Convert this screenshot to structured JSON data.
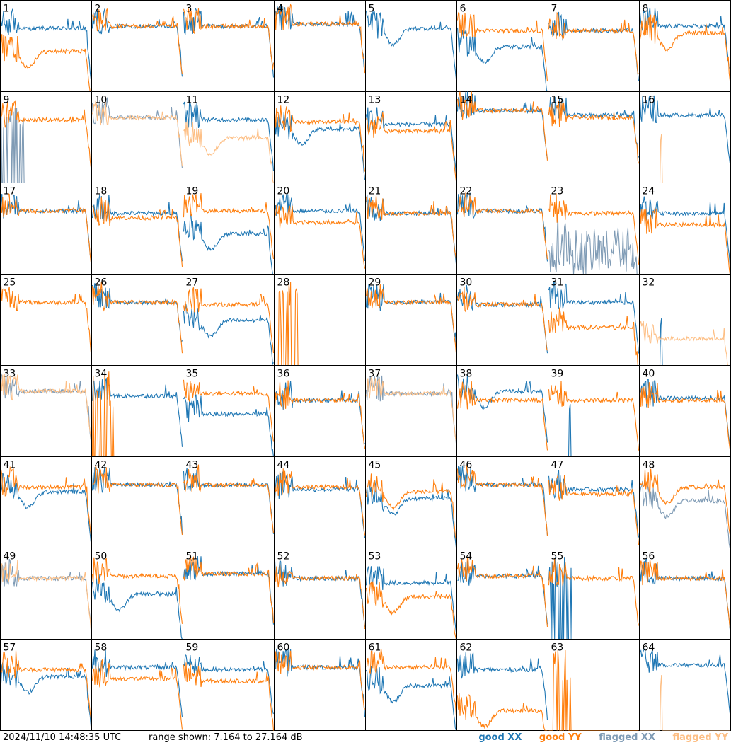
{
  "footer": {
    "timestamp": "2024/11/10 14:48:35 UTC",
    "range_label": "range shown: 7.164 to 27.164 dB"
  },
  "legend": {
    "good_xx": "good XX",
    "good_yy": "good YY",
    "flagged_xx": "flagged XX",
    "flagged_yy": "flagged YY"
  },
  "colors": {
    "good_xx": "#1f77b4",
    "good_yy": "#ff7f0e",
    "flagged_xx": "#7f9bb5",
    "flagged_yy": "#fdbf85"
  },
  "chart_data": {
    "type": "line",
    "grid_layout": "8x8 small multiples",
    "ylim": [
      7.164,
      27.164
    ],
    "y_unit": "dB",
    "panel_labels": [
      "1",
      "2",
      "3",
      "4",
      "5",
      "6",
      "7",
      "8",
      "9",
      "10",
      "11",
      "12",
      "13",
      "14",
      "15",
      "16",
      "17",
      "18",
      "19",
      "20",
      "21",
      "22",
      "23",
      "24",
      "25",
      "26",
      "27",
      "28",
      "29",
      "30",
      "31",
      "32",
      "33",
      "34",
      "35",
      "36",
      "37",
      "38",
      "39",
      "40",
      "41",
      "42",
      "43",
      "44",
      "45",
      "46",
      "47",
      "48",
      "49",
      "50",
      "51",
      "52",
      "53",
      "54",
      "55",
      "56",
      "57",
      "58",
      "59",
      "60",
      "61",
      "62",
      "63",
      "64"
    ],
    "panels": [
      {
        "xx": "good",
        "yy": "good",
        "xx_level": 21,
        "yy_level": 16,
        "xx_shape": "flat",
        "yy_shape": "dip"
      },
      {
        "xx": "good",
        "yy": "good",
        "xx_level": 21.5,
        "yy_level": 21.5,
        "xx_shape": "flat",
        "yy_shape": "flat"
      },
      {
        "xx": "good",
        "yy": "good",
        "xx_level": 21.5,
        "yy_level": 21.5,
        "xx_shape": "flat",
        "yy_shape": "flat"
      },
      {
        "xx": "good",
        "yy": "good",
        "xx_level": 22,
        "yy_level": 22,
        "xx_shape": "flat",
        "yy_shape": "flat"
      },
      {
        "xx": "good",
        "yy": "absent",
        "xx_level": 21,
        "yy_level": 7.2,
        "xx_shape": "dip",
        "yy_shape": "flat"
      },
      {
        "xx": "good",
        "yy": "good",
        "xx_level": 17,
        "yy_level": 20.5,
        "xx_shape": "dip",
        "yy_shape": "flat"
      },
      {
        "xx": "good",
        "yy": "good",
        "xx_level": 20.5,
        "yy_level": 20.5,
        "xx_shape": "flat",
        "yy_shape": "flat"
      },
      {
        "xx": "good",
        "yy": "good",
        "xx_level": 21.5,
        "yy_level": 20,
        "xx_shape": "flat",
        "yy_shape": "dip"
      },
      {
        "xx": "flagged",
        "yy": "good",
        "xx_level": 8.5,
        "yy_level": 21,
        "xx_shape": "spikes",
        "yy_shape": "flat"
      },
      {
        "xx": "flagged",
        "yy": "flagged",
        "xx_level": 21.5,
        "yy_level": 21.5,
        "xx_shape": "flat",
        "yy_shape": "flat"
      },
      {
        "xx": "good",
        "yy": "flagged",
        "xx_level": 21,
        "yy_level": 17,
        "xx_shape": "flat",
        "yy_shape": "dip"
      },
      {
        "xx": "good",
        "yy": "good",
        "xx_level": 19,
        "yy_level": 20.5,
        "xx_shape": "dip",
        "yy_shape": "flat"
      },
      {
        "xx": "good",
        "yy": "good",
        "xx_level": 20,
        "yy_level": 18.5,
        "xx_shape": "flat",
        "yy_shape": "flat"
      },
      {
        "xx": "good",
        "yy": "good",
        "xx_level": 23,
        "yy_level": 23,
        "xx_shape": "flat",
        "yy_shape": "flat"
      },
      {
        "xx": "good",
        "yy": "good",
        "xx_level": 22,
        "yy_level": 21.5,
        "xx_shape": "flat",
        "yy_shape": "flat"
      },
      {
        "xx": "good",
        "yy": "flagged",
        "xx_level": 22,
        "yy_level": 7.2,
        "xx_shape": "flat",
        "yy_shape": "spike"
      },
      {
        "xx": "good",
        "yy": "good",
        "xx_level": 21,
        "yy_level": 21,
        "xx_shape": "flat",
        "yy_shape": "flat"
      },
      {
        "xx": "good",
        "yy": "good",
        "xx_level": 20.5,
        "yy_level": 19.5,
        "xx_shape": "flat",
        "yy_shape": "flat"
      },
      {
        "xx": "good",
        "yy": "good",
        "xx_level": 16,
        "yy_level": 21,
        "xx_shape": "dip",
        "yy_shape": "flat"
      },
      {
        "xx": "good",
        "yy": "good",
        "xx_level": 21,
        "yy_level": 18.5,
        "xx_shape": "flat",
        "yy_shape": "flat"
      },
      {
        "xx": "good",
        "yy": "good",
        "xx_level": 20.5,
        "yy_level": 20.5,
        "xx_shape": "flat",
        "yy_shape": "flat"
      },
      {
        "xx": "good",
        "yy": "good",
        "xx_level": 21,
        "yy_level": 21,
        "xx_shape": "flat",
        "yy_shape": "flat"
      },
      {
        "xx": "flagged",
        "yy": "good",
        "xx_level": 12,
        "yy_level": 20.5,
        "xx_shape": "noisy",
        "yy_shape": "flat"
      },
      {
        "xx": "good",
        "yy": "good",
        "xx_level": 20.5,
        "yy_level": 18,
        "xx_shape": "flat",
        "yy_shape": "flat"
      },
      {
        "xx": "absent",
        "yy": "good",
        "xx_level": 7.2,
        "yy_level": 21,
        "xx_shape": "flat",
        "yy_shape": "flat"
      },
      {
        "xx": "good",
        "yy": "good",
        "xx_level": 21,
        "yy_level": 21,
        "xx_shape": "flat",
        "yy_shape": "flat"
      },
      {
        "xx": "good",
        "yy": "good",
        "xx_level": 17,
        "yy_level": 20.5,
        "xx_shape": "dip",
        "yy_shape": "flat"
      },
      {
        "xx": "absent",
        "yy": "good",
        "xx_level": 7.2,
        "yy_level": 7.2,
        "xx_shape": "flat",
        "yy_shape": "spikes"
      },
      {
        "xx": "good",
        "yy": "good",
        "xx_level": 21,
        "yy_level": 21,
        "xx_shape": "flat",
        "yy_shape": "flat"
      },
      {
        "xx": "good",
        "yy": "good",
        "xx_level": 20.5,
        "yy_level": 20.5,
        "xx_shape": "flat",
        "yy_shape": "flat"
      },
      {
        "xx": "good",
        "yy": "good",
        "xx_level": 21,
        "yy_level": 15.5,
        "xx_shape": "flat",
        "yy_shape": "flat"
      },
      {
        "xx": "good",
        "yy": "flagged",
        "xx_level": 7.2,
        "yy_level": 13,
        "xx_shape": "spike",
        "yy_shape": "flat"
      },
      {
        "xx": "flagged",
        "yy": "flagged",
        "xx_level": 21.5,
        "yy_level": 21.5,
        "xx_shape": "flat",
        "yy_shape": "flat"
      },
      {
        "xx": "good",
        "yy": "good",
        "xx_level": 20.5,
        "yy_level": 7.2,
        "xx_shape": "flat",
        "yy_shape": "spikes"
      },
      {
        "xx": "good",
        "yy": "good",
        "xx_level": 16.5,
        "yy_level": 21,
        "xx_shape": "flat",
        "yy_shape": "flat"
      },
      {
        "xx": "good",
        "yy": "good",
        "xx_level": 19.5,
        "yy_level": 19.5,
        "xx_shape": "flat",
        "yy_shape": "flat"
      },
      {
        "xx": "flagged",
        "yy": "flagged",
        "xx_level": 21,
        "yy_level": 21,
        "xx_shape": "flat",
        "yy_shape": "flat"
      },
      {
        "xx": "good",
        "yy": "good",
        "xx_level": 21.5,
        "yy_level": 19.5,
        "xx_shape": "dip",
        "yy_shape": "flat"
      },
      {
        "xx": "good",
        "yy": "good",
        "xx_level": 7.2,
        "yy_level": 19.5,
        "xx_shape": "spike",
        "yy_shape": "flat"
      },
      {
        "xx": "good",
        "yy": "good",
        "xx_level": 20,
        "yy_level": 19.5,
        "xx_shape": "flat",
        "yy_shape": "flat"
      },
      {
        "xx": "good",
        "yy": "good",
        "xx_level": 19.5,
        "yy_level": 20.5,
        "xx_shape": "dip",
        "yy_shape": "flat"
      },
      {
        "xx": "good",
        "yy": "good",
        "xx_level": 21,
        "yy_level": 21,
        "xx_shape": "flat",
        "yy_shape": "flat"
      },
      {
        "xx": "good",
        "yy": "good",
        "xx_level": 21,
        "yy_level": 21,
        "xx_shape": "flat",
        "yy_shape": "flat"
      },
      {
        "xx": "good",
        "yy": "good",
        "xx_level": 20,
        "yy_level": 20.5,
        "xx_shape": "flat",
        "yy_shape": "flat"
      },
      {
        "xx": "good",
        "yy": "good",
        "xx_level": 18,
        "yy_level": 19.5,
        "xx_shape": "dip",
        "yy_shape": "dip"
      },
      {
        "xx": "good",
        "yy": "good",
        "xx_level": 21,
        "yy_level": 21,
        "xx_shape": "flat",
        "yy_shape": "flat"
      },
      {
        "xx": "good",
        "yy": "good",
        "xx_level": 20,
        "yy_level": 19,
        "xx_shape": "flat",
        "yy_shape": "flat"
      },
      {
        "xx": "flagged",
        "yy": "good",
        "xx_level": 17.5,
        "yy_level": 20.5,
        "xx_shape": "dip",
        "yy_shape": "dip"
      },
      {
        "xx": "flagged",
        "yy": "flagged",
        "xx_level": 20.5,
        "yy_level": 20.5,
        "xx_shape": "flat",
        "yy_shape": "flat"
      },
      {
        "xx": "good",
        "yy": "good",
        "xx_level": 17,
        "yy_level": 21,
        "xx_shape": "dip",
        "yy_shape": "flat"
      },
      {
        "xx": "good",
        "yy": "good",
        "xx_level": 21.5,
        "yy_level": 21.5,
        "xx_shape": "flat",
        "yy_shape": "flat"
      },
      {
        "xx": "good",
        "yy": "good",
        "xx_level": 20.5,
        "yy_level": 20.5,
        "xx_shape": "flat",
        "yy_shape": "flat"
      },
      {
        "xx": "good",
        "yy": "good",
        "xx_level": 19.5,
        "yy_level": 16.5,
        "xx_shape": "flat",
        "yy_shape": "dip"
      },
      {
        "xx": "good",
        "yy": "good",
        "xx_level": 21,
        "yy_level": 21,
        "xx_shape": "flat",
        "yy_shape": "flat"
      },
      {
        "xx": "good",
        "yy": "good",
        "xx_level": 7.2,
        "yy_level": 20.5,
        "xx_shape": "spikes",
        "yy_shape": "flat"
      },
      {
        "xx": "good",
        "yy": "good",
        "xx_level": 20.5,
        "yy_level": 20.5,
        "xx_shape": "flat",
        "yy_shape": "flat"
      },
      {
        "xx": "good",
        "yy": "good",
        "xx_level": 19,
        "yy_level": 20.5,
        "xx_shape": "dip",
        "yy_shape": "flat"
      },
      {
        "xx": "good",
        "yy": "good",
        "xx_level": 21,
        "yy_level": 18.5,
        "xx_shape": "flat",
        "yy_shape": "flat"
      },
      {
        "xx": "good",
        "yy": "good",
        "xx_level": 20.5,
        "yy_level": 18,
        "xx_shape": "flat",
        "yy_shape": "flat"
      },
      {
        "xx": "good",
        "yy": "good",
        "xx_level": 21,
        "yy_level": 21,
        "xx_shape": "flat",
        "yy_shape": "flat"
      },
      {
        "xx": "good",
        "yy": "good",
        "xx_level": 17,
        "yy_level": 21,
        "xx_shape": "dip",
        "yy_shape": "flat"
      },
      {
        "xx": "good",
        "yy": "good",
        "xx_level": 20.5,
        "yy_level": 11.5,
        "xx_shape": "flat",
        "yy_shape": "dip"
      },
      {
        "xx": "absent",
        "yy": "good",
        "xx_level": 7.2,
        "yy_level": 7.2,
        "xx_shape": "flat",
        "yy_shape": "spikes"
      },
      {
        "xx": "good",
        "yy": "flagged",
        "xx_level": 21.5,
        "yy_level": 7.2,
        "xx_shape": "flat",
        "yy_shape": "spike"
      }
    ]
  }
}
